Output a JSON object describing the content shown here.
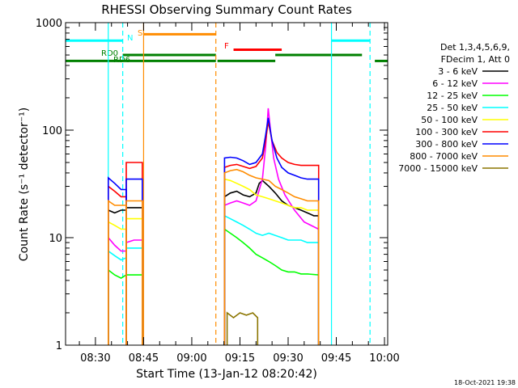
{
  "chart_data": {
    "type": "line",
    "title": "RHESSI Observing Summary Count Rates",
    "xlabel": "Start Time (13-Jan-12 08:20:42)",
    "ylabel": "Count Rate (s⁻¹ detector⁻¹)",
    "yscale": "log",
    "ylim": [
      1,
      1000
    ],
    "xlim_minutes": [
      20.7,
      121.0
    ],
    "x_ticks": [
      {
        "label": "08:30",
        "minute": 30
      },
      {
        "label": "08:45",
        "minute": 45
      },
      {
        "label": "09:00",
        "minute": 60
      },
      {
        "label": "09:15",
        "minute": 75
      },
      {
        "label": "09:30",
        "minute": 90
      },
      {
        "label": "09:45",
        "minute": 105
      },
      {
        "label": "10:00",
        "minute": 120
      }
    ],
    "y_ticks": [
      {
        "label": "1",
        "value": 1
      },
      {
        "label": "10",
        "value": 10
      },
      {
        "label": "100",
        "value": 100
      },
      {
        "label": "1000",
        "value": 1000
      }
    ],
    "legend_header": [
      "Det 1,3,4,5,6,9,",
      "FDecim 1, Att 0"
    ],
    "series": [
      {
        "name": "3 - 6 keV",
        "color": "#000000",
        "segments": [
          {
            "x": [
              34.0,
              36.0,
              38.0,
              39.6
            ],
            "y": [
              18,
              17,
              18,
              18
            ]
          },
          {
            "x": [
              39.6,
              42.0,
              44.6
            ],
            "y": [
              19,
              19,
              19
            ]
          },
          {
            "x": [
              70.2,
              72.0,
              74.0,
              76.0,
              78.0,
              80.0,
              81.0,
              82.0,
              84.0,
              86.0,
              88.0,
              90.0,
              92.0,
              94.0,
              96.0,
              98.0,
              99.5
            ],
            "y": [
              24,
              26,
              27,
              25,
              24,
              26,
              32,
              34,
              30,
              26,
              22,
              20,
              19,
              18,
              17,
              16,
              16
            ]
          }
        ]
      },
      {
        "name": "6 - 12 keV",
        "color": "#ff00ff",
        "segments": [
          {
            "x": [
              34.0,
              36.0,
              38.0,
              39.6
            ],
            "y": [
              10,
              8.5,
              7.5,
              7.5
            ]
          },
          {
            "x": [
              39.6,
              42.0,
              44.6
            ],
            "y": [
              9,
              9.5,
              9.5
            ]
          },
          {
            "x": [
              70.2,
              72.0,
              74.0,
              76.0,
              78.0,
              80.0,
              82.0,
              83.0,
              83.8,
              84.5,
              85.5,
              87.0,
              89.0,
              92.0,
              95.0,
              99.5
            ],
            "y": [
              20,
              21,
              22,
              21,
              20,
              22,
              35,
              70,
              160,
              100,
              55,
              35,
              25,
              18,
              14,
              12
            ]
          }
        ]
      },
      {
        "name": "12 - 25 keV",
        "color": "#00ff00",
        "segments": [
          {
            "x": [
              34.0,
              36.0,
              38.0,
              39.6
            ],
            "y": [
              5,
              4.5,
              4.2,
              4.5
            ]
          },
          {
            "x": [
              39.6,
              42.0,
              44.6
            ],
            "y": [
              4.5,
              4.5,
              4.5
            ]
          },
          {
            "x": [
              70.2,
              72.0,
              74.0,
              76.0,
              78.0,
              80.0,
              82.0,
              84.0,
              86.0,
              88.0,
              90.0,
              92.0,
              94.0,
              96.0,
              99.5
            ],
            "y": [
              12,
              11,
              10,
              9,
              8,
              7,
              6.5,
              6,
              5.5,
              5,
              4.8,
              4.8,
              4.6,
              4.6,
              4.5
            ]
          }
        ]
      },
      {
        "name": "25 - 50 keV",
        "color": "#00ffff",
        "segments": [
          {
            "x": [
              34.0,
              36.0,
              38.0,
              39.6
            ],
            "y": [
              7.5,
              6.8,
              6.2,
              6.5
            ]
          },
          {
            "x": [
              39.6,
              42.0,
              44.6
            ],
            "y": [
              8,
              8,
              8
            ]
          },
          {
            "x": [
              70.2,
              72.0,
              74.0,
              76.0,
              78.0,
              80.0,
              82.0,
              84.0,
              86.0,
              88.0,
              90.0,
              92.0,
              94.0,
              96.0,
              99.5
            ],
            "y": [
              16,
              15,
              14,
              13,
              12,
              11,
              10.5,
              11,
              10.5,
              10,
              9.5,
              9.5,
              9.5,
              9,
              9
            ]
          }
        ]
      },
      {
        "name": "50 - 100 keV",
        "color": "#ffff00",
        "segments": [
          {
            "x": [
              34.0,
              36.0,
              38.0,
              39.6
            ],
            "y": [
              14,
              13,
              12,
              12
            ]
          },
          {
            "x": [
              39.6,
              42.0,
              44.6
            ],
            "y": [
              15,
              15,
              15
            ]
          },
          {
            "x": [
              70.2,
              72.0,
              74.0,
              76.0,
              78.0,
              80.0,
              82.0,
              84.0,
              86.0,
              88.0,
              90.0,
              92.0,
              94.0,
              96.0,
              99.5
            ],
            "y": [
              35,
              34,
              32,
              30,
              28,
              25,
              24,
              23,
              22,
              21,
              20,
              19,
              19,
              18,
              18
            ]
          }
        ]
      },
      {
        "name": "100 - 300 keV",
        "color": "#ff0000",
        "segments": [
          {
            "x": [
              34.0,
              36.0,
              38.0,
              39.6
            ],
            "y": [
              30,
              27,
              24,
              24
            ]
          },
          {
            "x": [
              39.6,
              42.0,
              44.6
            ],
            "y": [
              50,
              50,
              50
            ]
          },
          {
            "x": [
              70.2,
              72.0,
              74.0,
              76.0,
              78.0,
              80.0,
              82.0,
              83.0,
              83.8,
              85.0,
              86.5,
              88.0,
              90.0,
              92.0,
              94.0,
              96.0,
              99.5
            ],
            "y": [
              45,
              47,
              48,
              46,
              44,
              46,
              55,
              80,
              120,
              80,
              62,
              55,
              50,
              48,
              47,
              47,
              47
            ]
          }
        ]
      },
      {
        "name": "300 - 800 keV",
        "color": "#0000ff",
        "segments": [
          {
            "x": [
              34.0,
              36.0,
              38.0,
              39.6
            ],
            "y": [
              36,
              32,
              28,
              28
            ]
          },
          {
            "x": [
              39.6,
              42.0,
              44.6
            ],
            "y": [
              35,
              35,
              35
            ]
          },
          {
            "x": [
              70.2,
              72.0,
              74.0,
              76.0,
              78.0,
              80.0,
              82.0,
              83.0,
              83.8,
              85.0,
              86.5,
              88.0,
              90.0,
              92.0,
              94.0,
              96.0,
              99.5
            ],
            "y": [
              55,
              56,
              55,
              52,
              48,
              50,
              60,
              90,
              130,
              80,
              55,
              45,
              40,
              38,
              36,
              35,
              35
            ]
          }
        ]
      },
      {
        "name": "800 - 7000 keV",
        "color": "#ff8c00",
        "segments": [
          {
            "x": [
              34.0,
              36.0,
              38.0,
              39.6
            ],
            "y": [
              22,
              20,
              20,
              20
            ]
          },
          {
            "x": [
              39.6,
              42.0,
              44.6
            ],
            "y": [
              22,
              22,
              22
            ]
          },
          {
            "x": [
              70.2,
              72.0,
              74.0,
              76.0,
              78.0,
              80.0,
              82.0,
              84.0,
              86.0,
              88.0,
              90.0,
              92.0,
              94.0,
              96.0,
              99.5
            ],
            "y": [
              40,
              42,
              43,
              41,
              38,
              36,
              35,
              34,
              30,
              28,
              26,
              24,
              23,
              22,
              22
            ]
          }
        ]
      },
      {
        "name": "7000 - 15000 keV",
        "color": "#8b7500",
        "segments": [
          {
            "x": [
              71.0,
              73.0,
              75.0,
              77.0,
              79.0,
              80.5
            ],
            "y": [
              2,
              1.8,
              2,
              1.9,
              2,
              1.8
            ]
          }
        ]
      }
    ],
    "flags": [
      {
        "label": "N",
        "color": "#00ffff",
        "y": 680,
        "segments": [
          [
            20.7,
            38.5
          ],
          [
            103.5,
            115.5
          ]
        ]
      },
      {
        "label": "S",
        "color": "#ff8c00",
        "y": 780,
        "segments": [
          [
            45.0,
            67.5
          ]
        ]
      },
      {
        "label": "F",
        "color": "#ff0000",
        "y": 560,
        "segments": [
          [
            73.0,
            88.0
          ]
        ]
      },
      {
        "label": "RD0",
        "color": "#008000",
        "y": 500,
        "segments": [
          [
            38.5,
            67.5
          ],
          [
            86.0,
            113.0
          ]
        ]
      },
      {
        "label": "RD6",
        "color": "#008000",
        "y": 440,
        "segments": [
          [
            20.7,
            67.5
          ],
          [
            68.0,
            86.0
          ],
          [
            117.0,
            121.0
          ]
        ]
      }
    ],
    "vertical_lines": [
      {
        "minute": 34.0,
        "color": "#00ffff",
        "style": "solid"
      },
      {
        "minute": 38.5,
        "color": "#00ffff",
        "style": "dashed"
      },
      {
        "minute": 45.0,
        "color": "#ff8c00",
        "style": "solid"
      },
      {
        "minute": 67.5,
        "color": "#ff8c00",
        "style": "dashed"
      },
      {
        "minute": 103.5,
        "color": "#00ffff",
        "style": "solid"
      },
      {
        "minute": 115.5,
        "color": "#00ffff",
        "style": "dashed"
      }
    ]
  },
  "footer_date": "18-Oct-2021 19:38"
}
